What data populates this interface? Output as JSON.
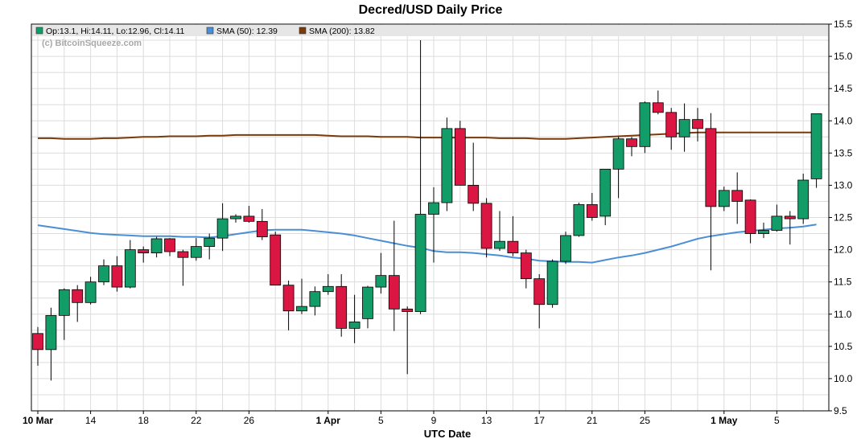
{
  "chart_data": {
    "type": "candlestick",
    "title": "Decred/USD Daily Price",
    "xlabel": "UTC Date",
    "ylabel": "",
    "ylim": [
      9.5,
      15.5
    ],
    "yticks": [
      "9.5",
      "10.0",
      "10.5",
      "11.0",
      "11.5",
      "12.0",
      "12.5",
      "13.0",
      "13.5",
      "14.0",
      "14.5",
      "15.0",
      "15.5"
    ],
    "xticks": [
      {
        "day": 0,
        "label": "10 Mar",
        "bold": true
      },
      {
        "day": 4,
        "label": "14",
        "bold": false
      },
      {
        "day": 8,
        "label": "18",
        "bold": false
      },
      {
        "day": 12,
        "label": "22",
        "bold": false
      },
      {
        "day": 16,
        "label": "26",
        "bold": false
      },
      {
        "day": 22,
        "label": "1 Apr",
        "bold": true
      },
      {
        "day": 26,
        "label": "5",
        "bold": false
      },
      {
        "day": 30,
        "label": "9",
        "bold": false
      },
      {
        "day": 34,
        "label": "13",
        "bold": false
      },
      {
        "day": 38,
        "label": "17",
        "bold": false
      },
      {
        "day": 42,
        "label": "21",
        "bold": false
      },
      {
        "day": 46,
        "label": "25",
        "bold": false
      },
      {
        "day": 52,
        "label": "1 May",
        "bold": true
      },
      {
        "day": 56,
        "label": "5",
        "bold": false
      }
    ],
    "grid": true,
    "legend_position": "top-left",
    "watermark": "(c) BitcoinSqueeze.com",
    "legend": {
      "ohlc": "Op:13.1, Hi:14.11, Lo:12.96, Cl:14.11",
      "sma50": "SMA (50): 12.39",
      "sma200": "SMA (200): 13.82"
    },
    "colors": {
      "up": "#129c67",
      "down": "#dc1642",
      "sma50": "#4a8fd6",
      "sma200": "#7a3a0a",
      "grid": "#dcdcdc",
      "legend_bg": "#e6e6e6"
    },
    "candles": [
      {
        "date": "Mar 10",
        "o": 10.7,
        "h": 10.8,
        "l": 10.2,
        "c": 10.45
      },
      {
        "date": "Mar 11",
        "o": 10.45,
        "h": 11.1,
        "l": 9.97,
        "c": 10.98
      },
      {
        "date": "Mar 12",
        "o": 10.98,
        "h": 11.4,
        "l": 10.6,
        "c": 11.38
      },
      {
        "date": "Mar 13",
        "o": 11.38,
        "h": 11.45,
        "l": 10.88,
        "c": 11.18
      },
      {
        "date": "Mar 14",
        "o": 11.18,
        "h": 11.58,
        "l": 11.15,
        "c": 11.5
      },
      {
        "date": "Mar 15",
        "o": 11.5,
        "h": 11.85,
        "l": 11.45,
        "c": 11.75
      },
      {
        "date": "Mar 16",
        "o": 11.75,
        "h": 11.9,
        "l": 11.35,
        "c": 11.42
      },
      {
        "date": "Mar 17",
        "o": 11.42,
        "h": 12.15,
        "l": 11.4,
        "c": 12.0
      },
      {
        "date": "Mar 18",
        "o": 12.0,
        "h": 12.05,
        "l": 11.8,
        "c": 11.95
      },
      {
        "date": "Mar 19",
        "o": 11.95,
        "h": 12.2,
        "l": 11.88,
        "c": 12.17
      },
      {
        "date": "Mar 20",
        "o": 12.17,
        "h": 12.18,
        "l": 11.9,
        "c": 11.97
      },
      {
        "date": "Mar 21",
        "o": 11.97,
        "h": 12.0,
        "l": 11.44,
        "c": 11.88
      },
      {
        "date": "Mar 22",
        "o": 11.88,
        "h": 12.18,
        "l": 11.83,
        "c": 12.05
      },
      {
        "date": "Mar 23",
        "o": 12.05,
        "h": 12.25,
        "l": 11.85,
        "c": 12.18
      },
      {
        "date": "Mar 24",
        "o": 12.18,
        "h": 12.72,
        "l": 11.98,
        "c": 12.48
      },
      {
        "date": "Mar 25",
        "o": 12.48,
        "h": 12.55,
        "l": 12.42,
        "c": 12.52
      },
      {
        "date": "Mar 26",
        "o": 12.52,
        "h": 12.68,
        "l": 12.42,
        "c": 12.44
      },
      {
        "date": "Mar 27",
        "o": 12.44,
        "h": 12.63,
        "l": 12.15,
        "c": 12.2
      },
      {
        "date": "Mar 28",
        "o": 12.23,
        "h": 12.28,
        "l": 11.45,
        "c": 11.45
      },
      {
        "date": "Mar 29",
        "o": 11.45,
        "h": 11.52,
        "l": 10.75,
        "c": 11.05
      },
      {
        "date": "Mar 30",
        "o": 11.05,
        "h": 11.55,
        "l": 11.0,
        "c": 11.12
      },
      {
        "date": "Mar 31",
        "o": 11.12,
        "h": 11.43,
        "l": 10.98,
        "c": 11.35
      },
      {
        "date": "Apr 1",
        "o": 11.35,
        "h": 11.62,
        "l": 11.3,
        "c": 11.43
      },
      {
        "date": "Apr 2",
        "o": 11.43,
        "h": 11.62,
        "l": 10.65,
        "c": 10.78
      },
      {
        "date": "Apr 3",
        "o": 10.78,
        "h": 11.3,
        "l": 10.55,
        "c": 10.88
      },
      {
        "date": "Apr 4",
        "o": 10.93,
        "h": 11.44,
        "l": 10.78,
        "c": 11.42
      },
      {
        "date": "Apr 5",
        "o": 11.42,
        "h": 11.95,
        "l": 11.32,
        "c": 11.6
      },
      {
        "date": "Apr 6",
        "o": 11.6,
        "h": 12.45,
        "l": 10.74,
        "c": 11.08
      },
      {
        "date": "Apr 7",
        "o": 11.08,
        "h": 11.12,
        "l": 10.07,
        "c": 11.04
      },
      {
        "date": "Apr 8",
        "o": 11.04,
        "h": 15.25,
        "l": 11.0,
        "c": 12.55
      },
      {
        "date": "Apr 9",
        "o": 12.55,
        "h": 12.97,
        "l": 11.8,
        "c": 12.73
      },
      {
        "date": "Apr 10",
        "o": 12.73,
        "h": 14.05,
        "l": 12.6,
        "c": 13.88
      },
      {
        "date": "Apr 11",
        "o": 13.88,
        "h": 14.0,
        "l": 13.0,
        "c": 13.0
      },
      {
        "date": "Apr 12",
        "o": 13.0,
        "h": 13.66,
        "l": 12.6,
        "c": 12.72
      },
      {
        "date": "Apr 13",
        "o": 12.72,
        "h": 12.8,
        "l": 11.88,
        "c": 12.02
      },
      {
        "date": "Apr 14",
        "o": 12.02,
        "h": 12.6,
        "l": 11.98,
        "c": 12.13
      },
      {
        "date": "Apr 15",
        "o": 12.13,
        "h": 12.52,
        "l": 11.9,
        "c": 11.95
      },
      {
        "date": "Apr 16",
        "o": 11.95,
        "h": 12.0,
        "l": 11.4,
        "c": 11.55
      },
      {
        "date": "Apr 17",
        "o": 11.55,
        "h": 11.62,
        "l": 10.78,
        "c": 11.15
      },
      {
        "date": "Apr 18",
        "o": 11.15,
        "h": 11.85,
        "l": 11.1,
        "c": 11.82
      },
      {
        "date": "Apr 19",
        "o": 11.82,
        "h": 12.28,
        "l": 11.78,
        "c": 12.22
      },
      {
        "date": "Apr 20",
        "o": 12.22,
        "h": 12.73,
        "l": 12.2,
        "c": 12.7
      },
      {
        "date": "Apr 21",
        "o": 12.7,
        "h": 12.88,
        "l": 12.45,
        "c": 12.5
      },
      {
        "date": "Apr 22",
        "o": 12.52,
        "h": 13.25,
        "l": 12.38,
        "c": 13.25
      },
      {
        "date": "Apr 23",
        "o": 13.25,
        "h": 13.75,
        "l": 12.8,
        "c": 13.72
      },
      {
        "date": "Apr 24",
        "o": 13.72,
        "h": 13.75,
        "l": 13.45,
        "c": 13.6
      },
      {
        "date": "Apr 25",
        "o": 13.6,
        "h": 14.3,
        "l": 13.5,
        "c": 14.28
      },
      {
        "date": "Apr 26",
        "o": 14.28,
        "h": 14.47,
        "l": 14.1,
        "c": 14.13
      },
      {
        "date": "Apr 27",
        "o": 14.13,
        "h": 14.2,
        "l": 13.55,
        "c": 13.75
      },
      {
        "date": "Apr 28",
        "o": 13.75,
        "h": 14.27,
        "l": 13.52,
        "c": 14.02
      },
      {
        "date": "Apr 29",
        "o": 14.02,
        "h": 14.2,
        "l": 13.68,
        "c": 13.88
      },
      {
        "date": "Apr 30",
        "o": 13.88,
        "h": 14.12,
        "l": 11.68,
        "c": 12.67
      },
      {
        "date": "May 1",
        "o": 12.67,
        "h": 12.98,
        "l": 12.6,
        "c": 12.92
      },
      {
        "date": "May 2",
        "o": 12.92,
        "h": 13.2,
        "l": 12.4,
        "c": 12.75
      },
      {
        "date": "May 3",
        "o": 12.77,
        "h": 12.78,
        "l": 12.1,
        "c": 12.25
      },
      {
        "date": "May 4",
        "o": 12.25,
        "h": 12.42,
        "l": 12.18,
        "c": 12.3
      },
      {
        "date": "May 5",
        "o": 12.3,
        "h": 12.7,
        "l": 12.28,
        "c": 12.52
      },
      {
        "date": "May 6",
        "o": 12.52,
        "h": 12.6,
        "l": 12.08,
        "c": 12.48
      },
      {
        "date": "May 7",
        "o": 12.48,
        "h": 13.18,
        "l": 12.4,
        "c": 13.08
      },
      {
        "date": "May 8",
        "o": 13.1,
        "h": 14.11,
        "l": 12.96,
        "c": 14.11
      }
    ],
    "sma50": [
      12.38,
      12.35,
      12.32,
      12.29,
      12.26,
      12.24,
      12.23,
      12.22,
      12.21,
      12.21,
      12.21,
      12.2,
      12.2,
      12.19,
      12.21,
      12.24,
      12.27,
      12.3,
      12.31,
      12.31,
      12.31,
      12.29,
      12.27,
      12.25,
      12.22,
      12.18,
      12.14,
      12.1,
      12.06,
      12.03,
      11.98,
      11.96,
      11.96,
      11.95,
      11.93,
      11.91,
      11.88,
      11.86,
      11.83,
      11.82,
      11.81,
      11.81,
      11.8,
      11.84,
      11.88,
      11.91,
      11.95,
      12.0,
      12.05,
      12.11,
      12.17,
      12.21,
      12.24,
      12.27,
      12.29,
      12.31,
      12.33,
      12.34,
      12.36,
      12.39
    ],
    "sma200": [
      13.73,
      13.73,
      13.72,
      13.72,
      13.72,
      13.73,
      13.73,
      13.74,
      13.75,
      13.75,
      13.76,
      13.76,
      13.76,
      13.77,
      13.77,
      13.78,
      13.78,
      13.78,
      13.78,
      13.78,
      13.78,
      13.78,
      13.77,
      13.76,
      13.76,
      13.76,
      13.75,
      13.75,
      13.75,
      13.74,
      13.74,
      13.74,
      13.74,
      13.74,
      13.74,
      13.73,
      13.73,
      13.73,
      13.72,
      13.72,
      13.72,
      13.73,
      13.74,
      13.75,
      13.76,
      13.77,
      13.78,
      13.79,
      13.8,
      13.81,
      13.82,
      13.82,
      13.82,
      13.82,
      13.82,
      13.82,
      13.82,
      13.82,
      13.82,
      13.82
    ]
  }
}
